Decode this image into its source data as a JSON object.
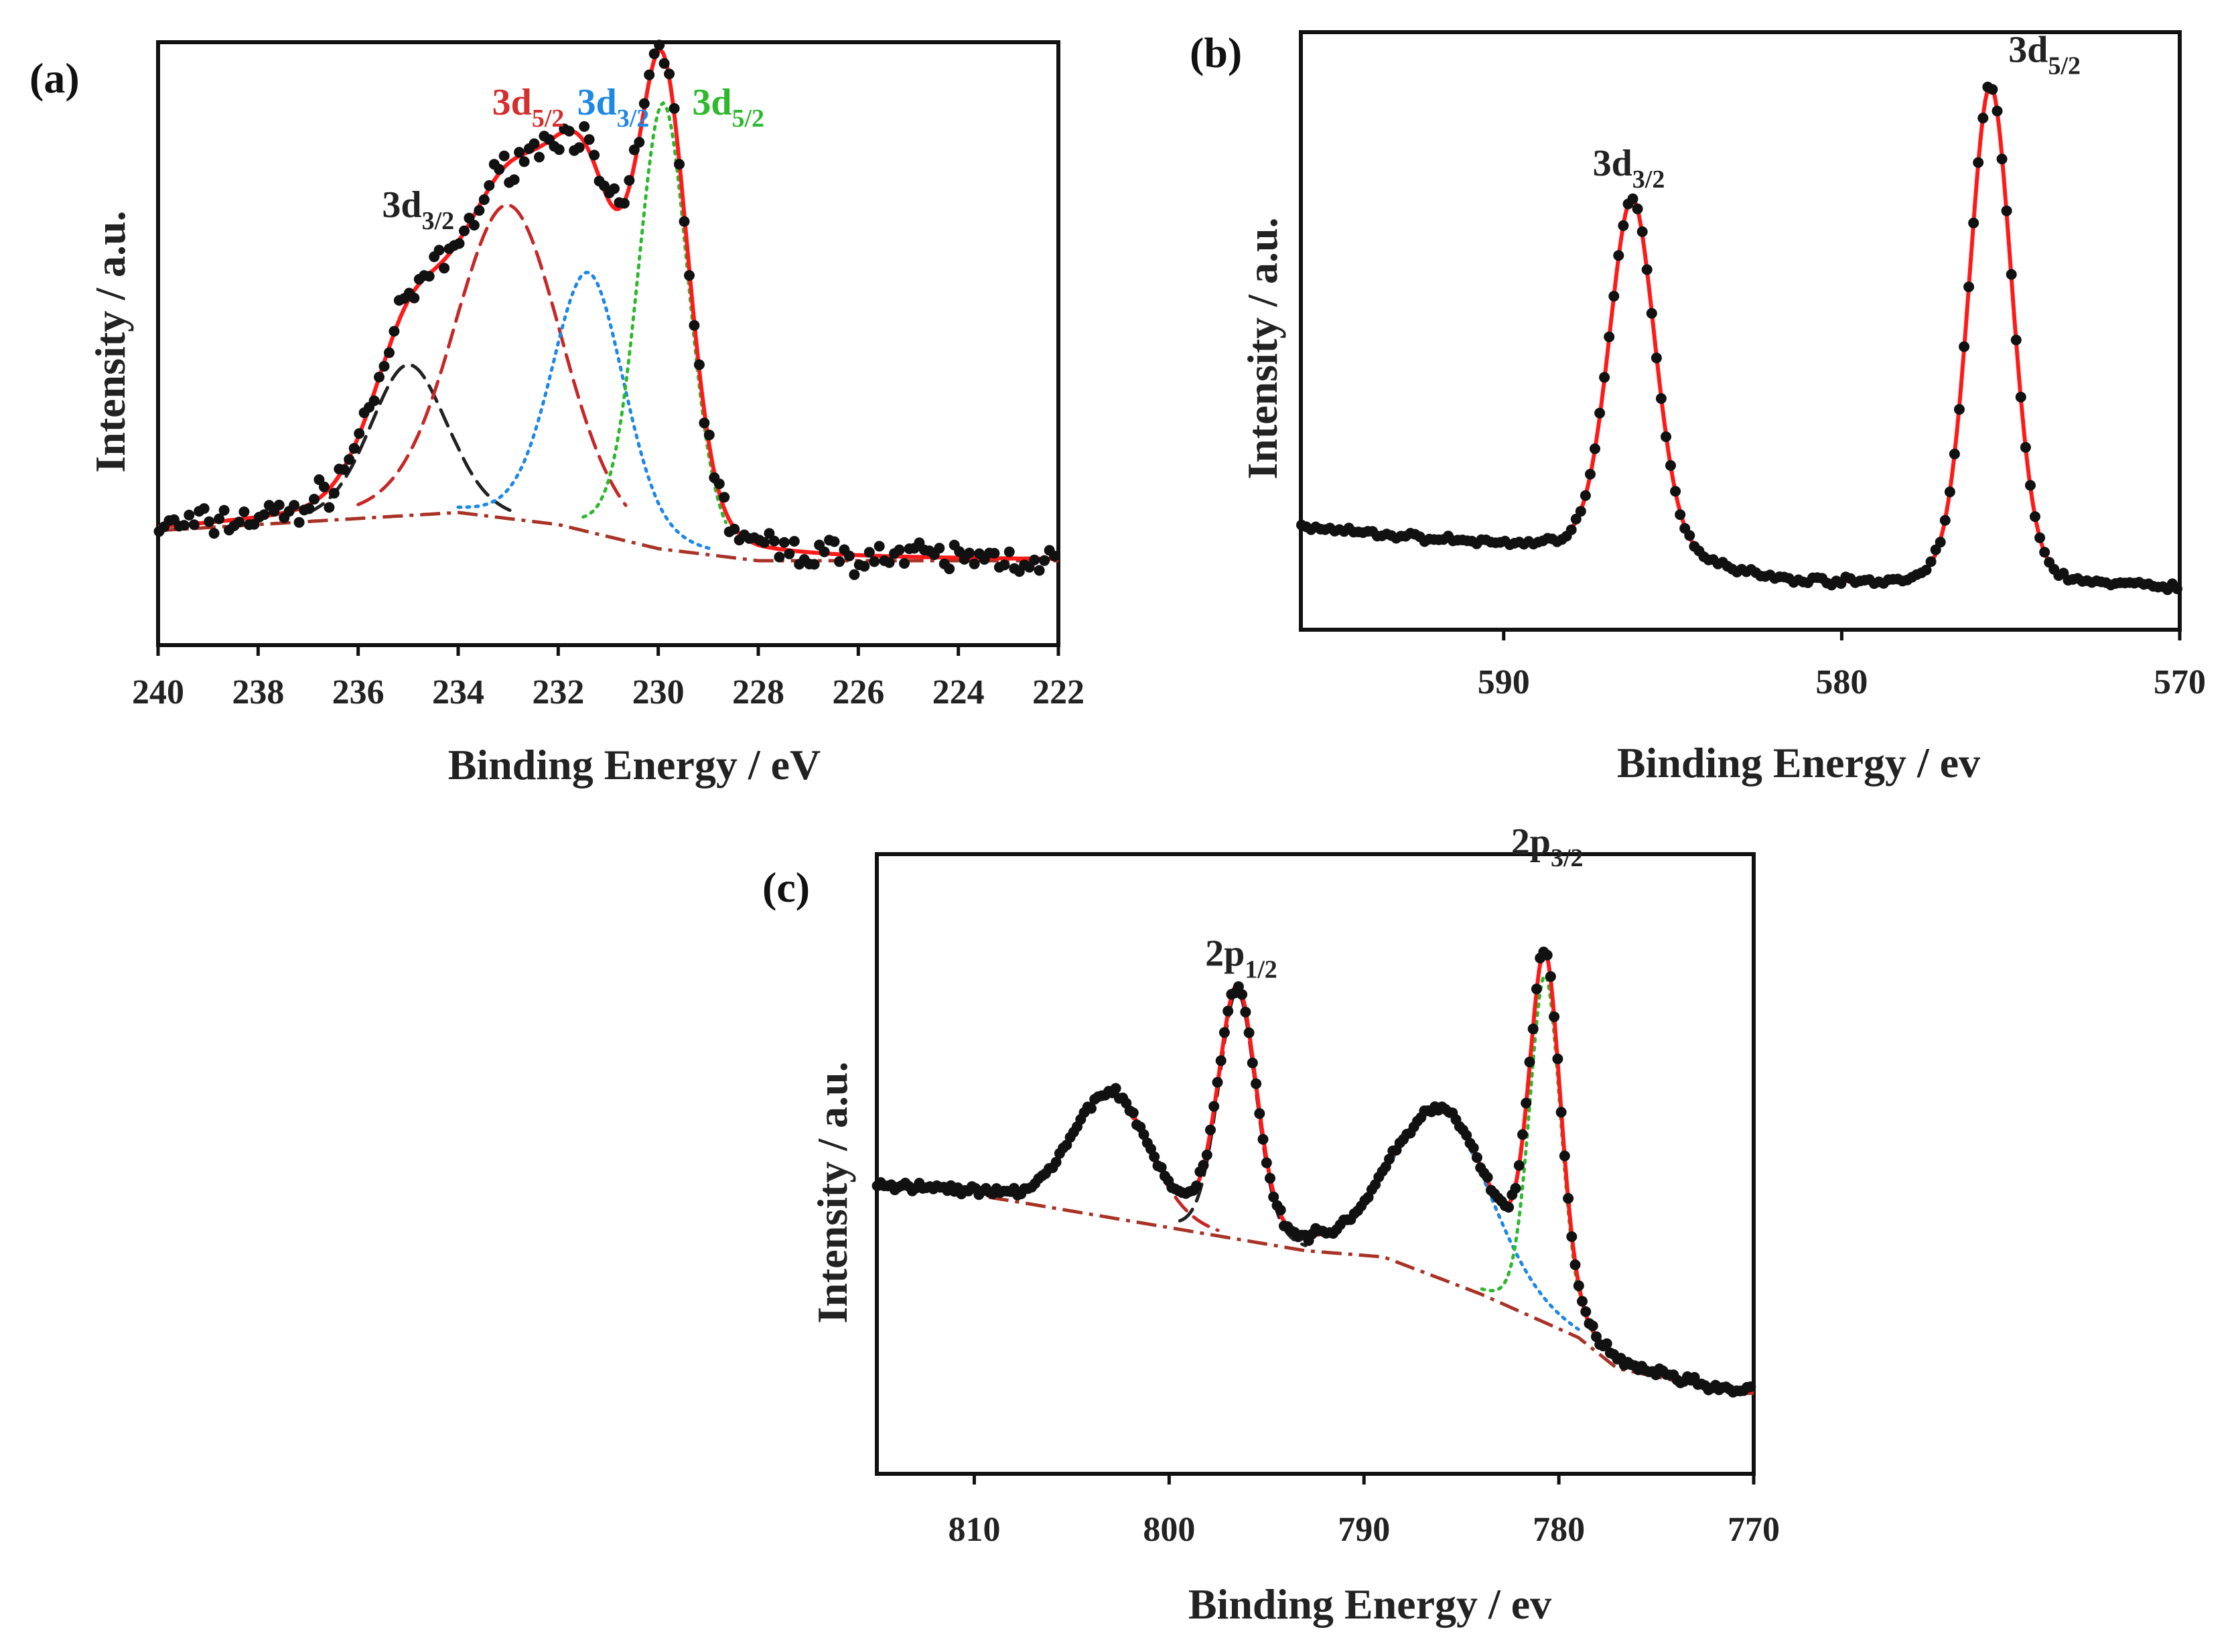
{
  "figure": {
    "panels": [
      "(a)",
      "(b)",
      "(c)"
    ]
  },
  "chart_data": [
    {
      "panel": "(a)",
      "type": "line",
      "title": "",
      "xlabel": "Binding Energy / eV",
      "ylabel": "Intensity / a.u.",
      "x_reversed": true,
      "xlim": [
        240,
        222
      ],
      "ylim": [
        0,
        100
      ],
      "xticks": [
        240,
        238,
        236,
        234,
        232,
        230,
        228,
        226,
        224,
        222
      ],
      "xtick_labels": [
        "240",
        "238",
        "236",
        "234",
        "232",
        "230",
        "228",
        "226",
        "224",
        "222"
      ],
      "annotations": [
        {
          "base": "3d",
          "sub": "3/2",
          "color": "#222222",
          "x": 234.8,
          "y": 71
        },
        {
          "base": "3d",
          "sub": "5/2",
          "color": "#d32f2f",
          "x": 232.6,
          "y": 88
        },
        {
          "base": "3d",
          "sub": "3/2",
          "color": "#1e88e5",
          "x": 230.9,
          "y": 88
        },
        {
          "base": "3d",
          "sub": "5/2",
          "color": "#2eb82e",
          "x": 228.6,
          "y": 88
        }
      ],
      "background": {
        "x": [
          240,
          236,
          234,
          232,
          230,
          228,
          226,
          222
        ],
        "y": [
          19,
          21,
          22,
          20,
          16,
          14,
          14,
          14
        ]
      },
      "components": [
        {
          "name": "3d3/2",
          "color": "#222222",
          "style": "dashed",
          "center": 235,
          "height": 25,
          "width": 0.9,
          "x_range": [
            237,
            232.8
          ]
        },
        {
          "name": "3d5/2",
          "color": "#c62828",
          "style": "dashed",
          "center": 233.0,
          "height": 52,
          "width": 1.25,
          "x_range": [
            236,
            230.6
          ]
        },
        {
          "name": "3d3/2",
          "color": "#1e88e5",
          "style": "dotted",
          "center": 231.4,
          "height": 43,
          "width": 0.85,
          "x_range": [
            234,
            228.9
          ]
        },
        {
          "name": "3d5/2",
          "color": "#2eb82e",
          "style": "dotted",
          "center": 229.9,
          "height": 74,
          "width": 0.6,
          "x_range": [
            231.5,
            228.6
          ]
        }
      ],
      "fit_color": "#ff1a1a",
      "data_noise": 2.3,
      "data_step": 0.1
    },
    {
      "panel": "(b)",
      "type": "line",
      "title": "",
      "xlabel": "Binding Energy / ev",
      "ylabel": "Intensity / a.u.",
      "x_reversed": true,
      "xlim": [
        596,
        570
      ],
      "ylim": [
        0,
        100
      ],
      "xticks": [
        590,
        580,
        570
      ],
      "xtick_labels": [
        "590",
        "580",
        "570"
      ],
      "annotations": [
        {
          "base": "3d",
          "sub": "3/2",
          "color": "#222222",
          "x": 586.3,
          "y": 76
        },
        {
          "base": "3d",
          "sub": "5/2",
          "color": "#222222",
          "x": 574.0,
          "y": 95
        }
      ],
      "background": {
        "x": [
          596,
          590,
          586,
          582,
          578,
          576,
          572,
          570
        ],
        "y": [
          17,
          14,
          13,
          8,
          7,
          7,
          7,
          7
        ]
      },
      "components": [
        {
          "name": "3d3/2",
          "color": "#ff1a1a",
          "style": "none",
          "center": 586.2,
          "height": 59,
          "width": 0.8,
          "x_range": [
            596,
            570
          ]
        },
        {
          "name": "3d5/2",
          "color": "#ff1a1a",
          "style": "none",
          "center": 575.6,
          "height": 84,
          "width": 0.75,
          "x_range": [
            596,
            570
          ]
        }
      ],
      "fit_color": "#ff1a1a",
      "data_noise": 0.5,
      "data_step": 0.14
    },
    {
      "panel": "(c)",
      "type": "line",
      "title": "",
      "xlabel": "Binding Energy / ev",
      "ylabel": "Intensity / a.u.",
      "x_reversed": true,
      "xlim": [
        815,
        770
      ],
      "ylim": [
        0,
        100
      ],
      "xticks": [
        810,
        800,
        790,
        780,
        770
      ],
      "xtick_labels": [
        "810",
        "800",
        "790",
        "780",
        "770"
      ],
      "annotations": [
        {
          "base": "2p",
          "sub": "1/2",
          "color": "#222222",
          "x": 796.3,
          "y": 82
        },
        {
          "base": "2p",
          "sub": "3/2",
          "color": "#222222",
          "x": 780.6,
          "y": 100
        }
      ],
      "background": {
        "x": [
          812,
          808,
          793,
          789,
          784,
          779,
          777,
          771
        ],
        "y": [
          46,
          44,
          36,
          35,
          29,
          22,
          17,
          13
        ]
      },
      "components": [
        {
          "name": "satellite",
          "color": "#c62828",
          "style": "dashed",
          "center": 803,
          "height": 20,
          "width": 2.3,
          "x_range": [
            808,
            797.5
          ]
        },
        {
          "name": "2p1/2",
          "color": "#222222",
          "style": "dashed",
          "center": 796.5,
          "height": 40,
          "width": 1.15,
          "x_range": [
            799.5,
            793
          ]
        },
        {
          "name": "satellite",
          "color": "#1e88e5",
          "style": "dotted",
          "center": 786,
          "height": 27,
          "width": 3.0,
          "x_range": [
            792,
            779
          ]
        },
        {
          "name": "2p3/2",
          "color": "#2eb82e",
          "style": "dotted",
          "center": 780.7,
          "height": 56,
          "width": 0.95,
          "x_range": [
            784,
            779
          ]
        }
      ],
      "fit_color": "#ff1a1a",
      "data_noise": 0.7,
      "data_step": 0.18
    }
  ]
}
